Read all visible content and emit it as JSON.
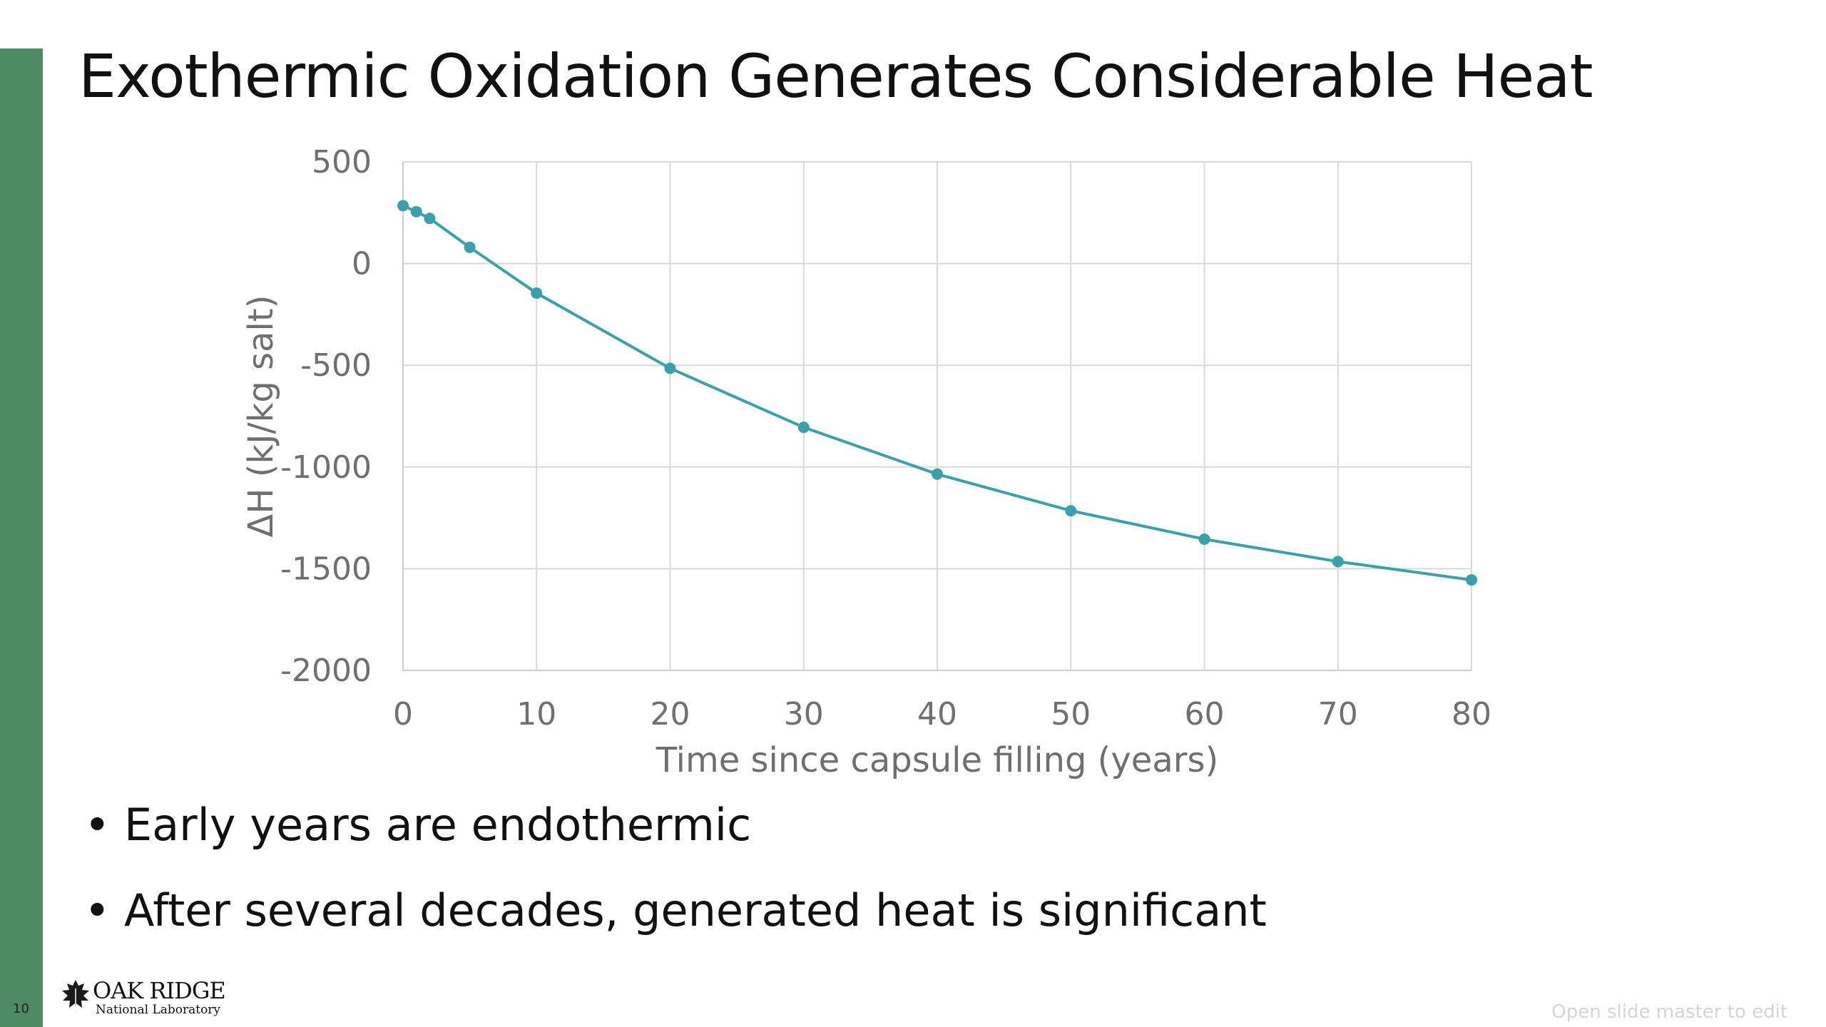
{
  "slide": {
    "title": "Exothermic Oxidation Generates Considerable Heat",
    "bullets": [
      "Early years are endothermic",
      "After several decades, generated heat is significant"
    ],
    "slide_number": "10",
    "logo": {
      "main": "OAK RIDGE",
      "sub": "National Laboratory",
      "icon": "oak-leaf-icon"
    },
    "master_note": "Open slide master to edit",
    "colors": {
      "accent_bar": "#4e8a64",
      "series": "#3aa1aa",
      "grid": "#d9d9d9",
      "axis_text": "#6f6f6f"
    }
  },
  "chart_data": {
    "type": "scatter",
    "title": "",
    "xlabel": "Time since capsule filling (years)",
    "ylabel": "ΔH (kJ/kg salt)",
    "xlim": [
      0,
      80
    ],
    "ylim": [
      -2000,
      500
    ],
    "x_ticks": [
      0,
      10,
      20,
      30,
      40,
      50,
      60,
      70,
      80
    ],
    "y_ticks": [
      500,
      0,
      -500,
      -1000,
      -1500,
      -2000
    ],
    "grid": true,
    "legend": "none",
    "series": [
      {
        "x": [
          0,
          1,
          2,
          5,
          10,
          20,
          30,
          40,
          50,
          60,
          70,
          80
        ],
        "y": [
          285,
          255,
          222,
          80,
          -145,
          -515,
          -805,
          -1035,
          -1215,
          -1355,
          -1465,
          -1555
        ]
      }
    ]
  }
}
